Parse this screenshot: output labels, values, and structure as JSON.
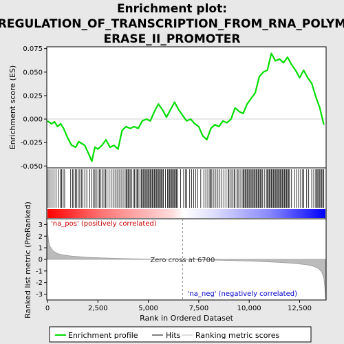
{
  "chart_data": {
    "type": "line",
    "title_lines": [
      "Enrichment plot:",
      "REGULATION_OF_TRANSCRIPTION_FROM_RNA_POLYM",
      "ERASE_II_PROMOTER"
    ],
    "panel1": {
      "ylabel": "Enrichment score (ES)",
      "ylim": [
        -0.052,
        0.077
      ],
      "yticks": [
        -0.05,
        -0.025,
        0.0,
        0.025,
        0.05,
        0.075
      ],
      "ytick_labels": [
        "-0.050",
        "-0.025",
        "0.000",
        "0.025",
        "0.050",
        "0.075"
      ],
      "series_name": "Enrichment profile",
      "color": "#00dd00",
      "x": [
        0,
        200,
        350,
        500,
        650,
        800,
        1000,
        1200,
        1400,
        1550,
        1700,
        1850,
        2000,
        2200,
        2350,
        2500,
        2700,
        2900,
        3100,
        3300,
        3500,
        3700,
        3900,
        4100,
        4300,
        4500,
        4700,
        4900,
        5100,
        5300,
        5500,
        5700,
        5900,
        6100,
        6300,
        6500,
        6700,
        6900,
        7100,
        7300,
        7500,
        7700,
        7900,
        8100,
        8300,
        8500,
        8700,
        8900,
        9100,
        9300,
        9500,
        9700,
        9900,
        10100,
        10300,
        10500,
        10700,
        10900,
        11100,
        11300,
        11500,
        11700,
        11900,
        12100,
        12300,
        12500,
        12700,
        12900,
        13100,
        13300,
        13500,
        13700
      ],
      "y": [
        -0.002,
        -0.005,
        -0.003,
        -0.008,
        -0.005,
        -0.01,
        -0.02,
        -0.028,
        -0.03,
        -0.024,
        -0.026,
        -0.028,
        -0.035,
        -0.045,
        -0.03,
        -0.032,
        -0.028,
        -0.022,
        -0.03,
        -0.028,
        -0.032,
        -0.012,
        -0.008,
        -0.01,
        -0.008,
        -0.01,
        -0.002,
        0.0,
        -0.002,
        0.008,
        0.016,
        0.01,
        0.002,
        0.01,
        0.018,
        0.01,
        0.004,
        -0.002,
        0.0,
        -0.005,
        -0.008,
        -0.018,
        -0.022,
        -0.01,
        -0.006,
        -0.008,
        -0.002,
        -0.004,
        0.0,
        0.012,
        0.008,
        0.006,
        0.016,
        0.022,
        0.028,
        0.045,
        0.05,
        0.052,
        0.07,
        0.062,
        0.064,
        0.06,
        0.066,
        0.058,
        0.052,
        0.044,
        0.052,
        0.044,
        0.038,
        0.024,
        0.012,
        -0.006
      ]
    },
    "hits": [
      30,
      130,
      230,
      320,
      420,
      550,
      640,
      700,
      780,
      850,
      1150,
      1250,
      1300,
      1380,
      1450,
      1520,
      1600,
      1680,
      1750,
      1850,
      1950,
      2100,
      2200,
      2280,
      2350,
      2420,
      2500,
      2580,
      2650,
      2720,
      2800,
      2880,
      2950,
      3050,
      3150,
      3250,
      3350,
      3450,
      3550,
      3650,
      3750,
      3850,
      3900,
      3950,
      4000,
      4050,
      4100,
      4180,
      4250,
      4320,
      4400,
      4450,
      4500,
      4580,
      4650,
      4700,
      4750,
      4800,
      4850,
      4900,
      4950,
      5000,
      5050,
      5100,
      5150,
      5200,
      5250,
      5300,
      5350,
      5400,
      5450,
      5500,
      5550,
      5600,
      5650,
      5700,
      5750,
      5850,
      5950,
      6000,
      6050,
      6100,
      6150,
      6200,
      6250,
      6300,
      6350,
      6400,
      6450,
      6600,
      6750,
      6850,
      6900,
      7050,
      7150,
      7250,
      7350,
      7450,
      7600,
      7750,
      7850,
      7950,
      8050,
      8100,
      8150,
      8250,
      8350,
      8450,
      8550,
      8650,
      8750,
      8850,
      8950,
      9000,
      9100,
      9150,
      9250,
      9300,
      9400,
      9450,
      9550,
      9650,
      9700,
      9750,
      9800,
      9850,
      9900,
      9950,
      10000,
      10050,
      10100,
      10150,
      10200,
      10250,
      10300,
      10350,
      10400,
      10450,
      10500,
      10550,
      10600,
      10650,
      10750,
      10850,
      10900,
      10950,
      11000,
      11050,
      11100,
      11150,
      11200,
      11250,
      11300,
      11350,
      11400,
      11450,
      11500,
      11550,
      11600,
      11650,
      11700,
      11750,
      11800,
      11850,
      11900,
      11950,
      12000,
      12100,
      12250,
      12350,
      12450,
      12550,
      12650,
      12700,
      12850,
      12950,
      13100,
      13200,
      13300,
      13350,
      13400,
      13450,
      13500,
      13550,
      13600,
      13650,
      13700
    ],
    "panel3": {
      "ylabel": "Ranked list metric (PreRanked)",
      "ylim": [
        -3.5,
        3.5
      ],
      "yticks": [
        -3,
        -2,
        -1,
        0,
        1,
        2,
        3
      ],
      "ytick_labels": [
        "-3",
        "-2",
        "-1",
        "0",
        "1",
        "2",
        "3"
      ],
      "series_name": "Ranking metric scores",
      "color": "#bbbbbb",
      "x": [
        0,
        20,
        50,
        100,
        200,
        300,
        500,
        800,
        1200,
        2000,
        3000,
        4000,
        5000,
        6000,
        6700,
        7500,
        8500,
        9500,
        10500,
        11500,
        12200,
        12800,
        13200,
        13450,
        13600,
        13700,
        13750,
        13780
      ],
      "y": [
        3.2,
        2.2,
        1.6,
        1.2,
        0.9,
        0.7,
        0.5,
        0.38,
        0.28,
        0.18,
        0.11,
        0.06,
        0.03,
        0.01,
        0.0,
        -0.03,
        -0.07,
        -0.12,
        -0.18,
        -0.26,
        -0.35,
        -0.45,
        -0.6,
        -0.8,
        -1.1,
        -1.6,
        -2.4,
        -3.4
      ],
      "pos_label": "'na_pos' (positively correlated)",
      "neg_label": "'na_neg' (negatively correlated)",
      "zero_cross_label": "Zero cross at 6700",
      "zero_cross": 6700
    },
    "xlabel": "Rank in Ordered Dataset",
    "xlim": [
      0,
      13780
    ],
    "xticks": [
      0,
      2500,
      5000,
      7500,
      10000,
      12500
    ],
    "xtick_labels": [
      "0",
      "2,500",
      "5,000",
      "7,500",
      "10,000",
      "12,500"
    ],
    "legend": {
      "items": [
        {
          "label": "Enrichment profile",
          "color": "#00dd00"
        },
        {
          "label": "Hits",
          "color": "#000000"
        },
        {
          "label": "Ranking metric scores",
          "color": "#bbbbbb"
        }
      ],
      "placement": "bottom"
    },
    "colors": {
      "pos": "#ff0000",
      "neg": "#0000ff",
      "pos_label": "#cc0000",
      "neg_label": "#0000cc"
    }
  }
}
